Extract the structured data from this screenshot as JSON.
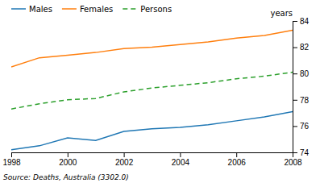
{
  "chart_data": {
    "type": "line",
    "ylabel": "years",
    "source": "Source: Deaths, Australia (3302.0)",
    "x": [
      1998,
      1999,
      2000,
      2001,
      2002,
      2003,
      2004,
      2005,
      2006,
      2007,
      2008
    ],
    "series": [
      {
        "name": "Males",
        "line_style": "solid",
        "values": [
          74.2,
          74.5,
          75.1,
          74.9,
          75.6,
          75.8,
          75.9,
          76.1,
          76.4,
          76.7,
          77.1
        ]
      },
      {
        "name": "Females",
        "line_style": "solid",
        "values": [
          80.5,
          81.2,
          81.4,
          81.6,
          81.9,
          82.0,
          82.2,
          82.4,
          82.7,
          82.9,
          83.3
        ]
      },
      {
        "name": "Persons",
        "line_style": "dashed",
        "values": [
          77.3,
          77.7,
          78.0,
          78.1,
          78.6,
          78.9,
          79.1,
          79.3,
          79.6,
          79.8,
          80.1
        ]
      }
    ],
    "xlim": [
      1998,
      2008
    ],
    "xticks": [
      1998,
      2000,
      2002,
      2004,
      2006,
      2008
    ],
    "ylim": [
      74,
      84
    ],
    "yticks": [
      74,
      76,
      78,
      80,
      82,
      84
    ],
    "legend": "top"
  }
}
